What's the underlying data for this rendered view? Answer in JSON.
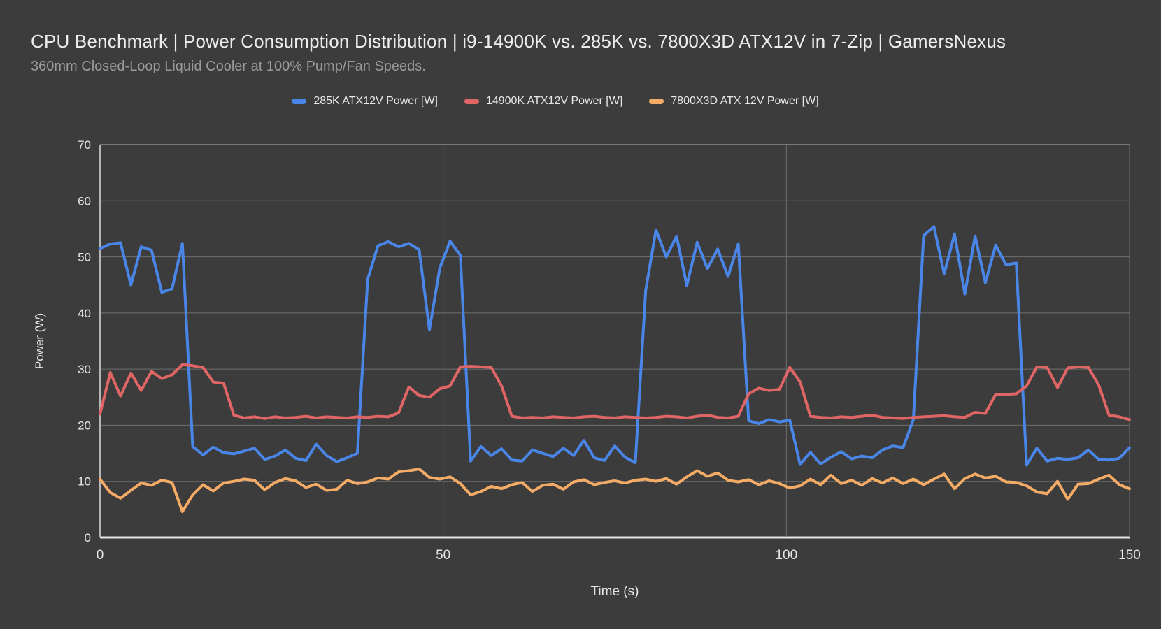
{
  "header": {
    "title": "CPU Benchmark | Power Consumption Distribution | i9-14900K vs. 285K vs. 7800X3D ATX12V in 7-Zip | GamersNexus",
    "subtitle": "360mm Closed-Loop Liquid Cooler at 100% Pump/Fan Speeds."
  },
  "colors": {
    "background": "#3c3c3c",
    "grid": "#6f6f6f",
    "plot_border": "#b5b5b5",
    "bottom_axis": "#e5e5e5",
    "tick_text": "#e6e6e6",
    "title_text": "#ededed",
    "subtitle_text": "#9a9a9a"
  },
  "chart_data": {
    "type": "line",
    "title": "CPU Benchmark | Power Consumption Distribution | i9-14900K vs. 285K vs. 7800X3D ATX12V in 7-Zip | GamersNexus",
    "subtitle": "360mm Closed-Loop Liquid Cooler at 100% Pump/Fan Speeds.",
    "xlabel": "Time (s)",
    "ylabel": "Power (W)",
    "xlim": [
      0,
      150
    ],
    "ylim": [
      0,
      70
    ],
    "x_ticks": [
      0,
      50,
      100,
      150
    ],
    "y_ticks": [
      0,
      10,
      20,
      30,
      40,
      50,
      60,
      70
    ],
    "grid": true,
    "legend_position": "top-center",
    "x_start": 0,
    "x_step": 1.5,
    "series": [
      {
        "name": "285K ATX12V Power [W]",
        "color": "#4a86e8",
        "values": [
          51.5,
          52.3,
          52.5,
          45.0,
          51.8,
          51.2,
          43.7,
          44.3,
          52.4,
          16.2,
          14.7,
          16.1,
          15.1,
          14.9,
          15.4,
          15.9,
          13.9,
          14.5,
          15.6,
          14.1,
          13.7,
          16.6,
          14.6,
          13.5,
          14.2,
          15.0,
          46.0,
          52.0,
          52.7,
          51.8,
          52.4,
          51.3,
          37.0,
          48.0,
          52.8,
          50.3,
          13.6,
          16.2,
          14.6,
          15.8,
          13.8,
          13.6,
          15.6,
          15.0,
          14.4,
          15.9,
          14.6,
          17.3,
          14.2,
          13.7,
          16.3,
          14.3,
          13.3,
          44.0,
          54.8,
          50.0,
          53.7,
          44.9,
          52.6,
          47.9,
          51.4,
          46.5,
          52.3,
          20.8,
          20.3,
          21.0,
          20.6,
          20.9,
          13.0,
          15.2,
          13.1,
          14.3,
          15.3,
          14.0,
          14.5,
          14.2,
          15.6,
          16.3,
          16.0,
          21.0,
          53.8,
          55.4,
          47.0,
          54.1,
          43.4,
          53.7,
          45.4,
          52.1,
          48.6,
          48.9,
          12.9,
          15.9,
          13.6,
          14.1,
          13.9,
          14.2,
          15.6,
          13.9,
          13.8,
          14.1,
          16.0
        ]
      },
      {
        "name": "14900K ATX12V Power [W]",
        "color": "#e06666",
        "values": [
          22.0,
          29.4,
          25.2,
          29.3,
          26.2,
          29.6,
          28.3,
          29.0,
          30.8,
          30.6,
          30.3,
          27.7,
          27.5,
          21.8,
          21.3,
          21.5,
          21.2,
          21.5,
          21.3,
          21.4,
          21.6,
          21.3,
          21.5,
          21.4,
          21.3,
          21.5,
          21.4,
          21.6,
          21.5,
          22.2,
          26.8,
          25.3,
          25.0,
          26.5,
          27.0,
          30.4,
          30.5,
          30.4,
          30.3,
          27.0,
          21.6,
          21.3,
          21.4,
          21.3,
          21.5,
          21.4,
          21.3,
          21.5,
          21.6,
          21.4,
          21.3,
          21.5,
          21.4,
          21.3,
          21.4,
          21.6,
          21.5,
          21.3,
          21.6,
          21.8,
          21.4,
          21.3,
          21.6,
          25.6,
          26.6,
          26.2,
          26.4,
          30.3,
          27.7,
          21.6,
          21.4,
          21.3,
          21.5,
          21.4,
          21.6,
          21.8,
          21.4,
          21.3,
          21.2,
          21.4,
          21.5,
          21.6,
          21.7,
          21.5,
          21.4,
          22.3,
          22.1,
          25.5,
          25.5,
          25.6,
          27.0,
          30.4,
          30.3,
          26.7,
          30.2,
          30.4,
          30.3,
          27.2,
          21.8,
          21.5,
          21.0
        ]
      },
      {
        "name": "7800X3D ATX 12V Power [W]",
        "color": "#f4ab66",
        "values": [
          10.4,
          8.0,
          7.0,
          8.4,
          9.7,
          9.3,
          10.2,
          9.8,
          4.6,
          7.6,
          9.4,
          8.3,
          9.7,
          10.0,
          10.4,
          10.2,
          8.5,
          9.8,
          10.5,
          10.1,
          8.9,
          9.5,
          8.4,
          8.6,
          10.2,
          9.6,
          9.9,
          10.6,
          10.4,
          11.7,
          11.9,
          12.2,
          10.7,
          10.4,
          10.8,
          9.6,
          7.6,
          8.2,
          9.1,
          8.7,
          9.4,
          9.8,
          8.2,
          9.3,
          9.5,
          8.6,
          9.9,
          10.3,
          9.4,
          9.8,
          10.1,
          9.7,
          10.2,
          10.4,
          10.0,
          10.5,
          9.5,
          10.8,
          11.9,
          10.9,
          11.5,
          10.2,
          9.9,
          10.3,
          9.4,
          10.1,
          9.6,
          8.8,
          9.2,
          10.4,
          9.4,
          11.1,
          9.6,
          10.2,
          9.3,
          10.5,
          9.7,
          10.6,
          9.6,
          10.4,
          9.4,
          10.4,
          11.3,
          8.7,
          10.5,
          11.3,
          10.6,
          10.9,
          9.9,
          9.8,
          9.2,
          8.1,
          7.8,
          10.0,
          6.8,
          9.5,
          9.6,
          10.4,
          11.1,
          9.4,
          8.7
        ]
      }
    ]
  }
}
